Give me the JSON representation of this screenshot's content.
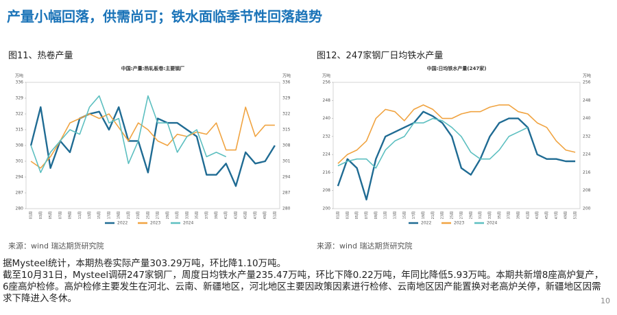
{
  "title": "产量小幅回落，供需尚可；铁水面临季节性回落趋势",
  "figure_labels": [
    "图11、热卷产量",
    "图12、247家钢厂日均铁水产量"
  ],
  "sources": [
    "来源：wind   瑞达期货研究院",
    "来源：wind   瑞达期货研究院"
  ],
  "body": [
    "据Mysteel统计，本期热卷实际产量303.29万吨，环比降1.10万吨。",
    "截至10月31日，Mysteel调研247家钢厂，周度日均铁水产量235.47万吨，环比下降0.22万吨，年同比降低5.93万吨。本期共新增8座高炉复产，6座高炉检修。高炉检修主要发生在河北、云南、新疆地区，河北地区主要因政策因素进行检修、云南地区因产能置换对老高炉关停，新疆地区因需求下降进入冬休。"
  ],
  "page_number": "10",
  "chart_data": [
    {
      "type": "line",
      "title": "中国:产量:热轧板卷:主要钢厂",
      "unit": "万吨",
      "categories": [
        "01周",
        "03周",
        "05周",
        "07周",
        "09周",
        "11周",
        "13周",
        "15周",
        "17周",
        "19周",
        "21周",
        "23周",
        "25周",
        "27周",
        "29周",
        "31周",
        "33周",
        "35周",
        "37周",
        "39周",
        "41周",
        "43周",
        "45周",
        "47周",
        "49周",
        "51周"
      ],
      "ylim": [
        280,
        336
      ],
      "yticks": [
        280,
        287,
        294,
        301,
        308,
        315,
        322,
        329,
        336
      ],
      "series": [
        {
          "name": "2022",
          "color": "#1f6b93",
          "values": [
            308,
            325,
            298,
            310,
            305,
            320,
            322,
            323,
            315,
            325,
            310,
            310,
            296,
            320,
            318,
            318,
            315,
            312,
            295,
            295,
            300,
            290,
            305,
            300,
            301,
            308
          ]
        },
        {
          "name": "2023",
          "color": "#f0a340",
          "values": [
            301,
            298,
            303,
            310,
            318,
            320,
            322,
            320,
            322,
            316,
            310,
            318,
            315,
            310,
            308,
            313,
            312,
            314,
            313,
            318,
            306,
            306,
            325,
            312,
            317,
            317
          ]
        },
        {
          "name": "2024",
          "color": "#5cbfc0",
          "values": [
            308,
            296,
            305,
            310,
            315,
            313,
            325,
            330,
            318,
            320,
            300,
            310,
            330,
            318,
            318,
            305,
            312,
            315,
            303,
            305,
            303,
            null,
            null,
            null,
            null,
            null
          ]
        }
      ]
    },
    {
      "type": "line",
      "title": "中国:日均铁水产量(247家)",
      "unit": "万吨",
      "categories": [
        "01周",
        "03周",
        "05周",
        "07周",
        "09周",
        "11周",
        "13周",
        "15周",
        "17周",
        "19周",
        "21周",
        "23周",
        "25周",
        "27周",
        "29周",
        "31周",
        "33周",
        "35周",
        "37周",
        "39周",
        "41周",
        "43周",
        "45周",
        "47周",
        "49周",
        "51周"
      ],
      "ylim": [
        200,
        256
      ],
      "yticks": [
        200,
        208,
        216,
        224,
        232,
        240,
        248,
        256
      ],
      "series": [
        {
          "name": "2022",
          "color": "#1f6b93",
          "values": [
            210,
            222,
            218,
            204,
            222,
            232,
            234,
            236,
            238,
            243,
            241,
            238,
            232,
            218,
            215,
            222,
            232,
            238,
            240,
            240,
            236,
            224,
            222,
            222,
            221,
            221
          ]
        },
        {
          "name": "2023",
          "color": "#f0a340",
          "values": [
            220,
            224,
            226,
            230,
            240,
            244,
            243,
            239,
            244,
            246,
            244,
            240,
            240,
            242,
            243,
            243,
            245,
            246,
            246,
            243,
            242,
            238,
            236,
            230,
            226,
            225
          ]
        },
        {
          "name": "2024",
          "color": "#5cbfc0",
          "values": [
            219,
            221,
            222,
            222,
            218,
            226,
            230,
            232,
            238,
            238,
            240,
            239,
            236,
            232,
            225,
            222,
            222,
            226,
            232,
            234,
            236,
            null,
            null,
            null,
            null,
            null
          ]
        }
      ]
    }
  ]
}
